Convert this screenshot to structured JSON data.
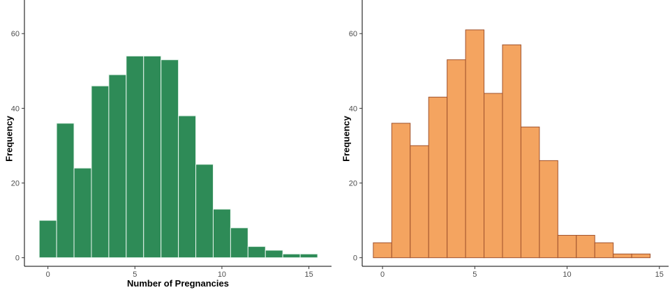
{
  "chart_data": [
    {
      "type": "bar",
      "variant": "histogram",
      "bin_width": 1,
      "bins": [
        0,
        1,
        2,
        3,
        4,
        5,
        6,
        7,
        8,
        9,
        10,
        11,
        12,
        13,
        14,
        15
      ],
      "values": [
        10,
        36,
        24,
        46,
        49,
        54,
        54,
        53,
        38,
        25,
        13,
        8,
        3,
        2,
        1,
        1
      ],
      "xlabel": "Number of Pregnancies",
      "ylabel": "Frequency",
      "xticks": [
        0,
        5,
        10,
        15
      ],
      "yticks": [
        0,
        20,
        40,
        60
      ],
      "xlim": [
        -1.35,
        16.3
      ],
      "ylim": [
        -2.3,
        69
      ],
      "grid": false,
      "fill_color": "#2e8b57",
      "edge_color": "#e8f5ee"
    },
    {
      "type": "bar",
      "variant": "histogram",
      "bin_width": 1,
      "bins": [
        0,
        1,
        2,
        3,
        4,
        5,
        6,
        7,
        8,
        9,
        10,
        11,
        12,
        13,
        14
      ],
      "values": [
        4,
        36,
        30,
        43,
        53,
        61,
        44,
        57,
        35,
        26,
        6,
        6,
        4,
        1,
        1
      ],
      "xlabel": "",
      "ylabel": "Frequency",
      "xticks": [
        0,
        5,
        10,
        15
      ],
      "yticks": [
        0,
        20,
        40,
        60
      ],
      "xlim": [
        -1.1,
        15.5
      ],
      "ylim": [
        -2.3,
        69
      ],
      "grid": false,
      "fill_color": "#f4a460",
      "edge_color": "#a0522d"
    }
  ]
}
